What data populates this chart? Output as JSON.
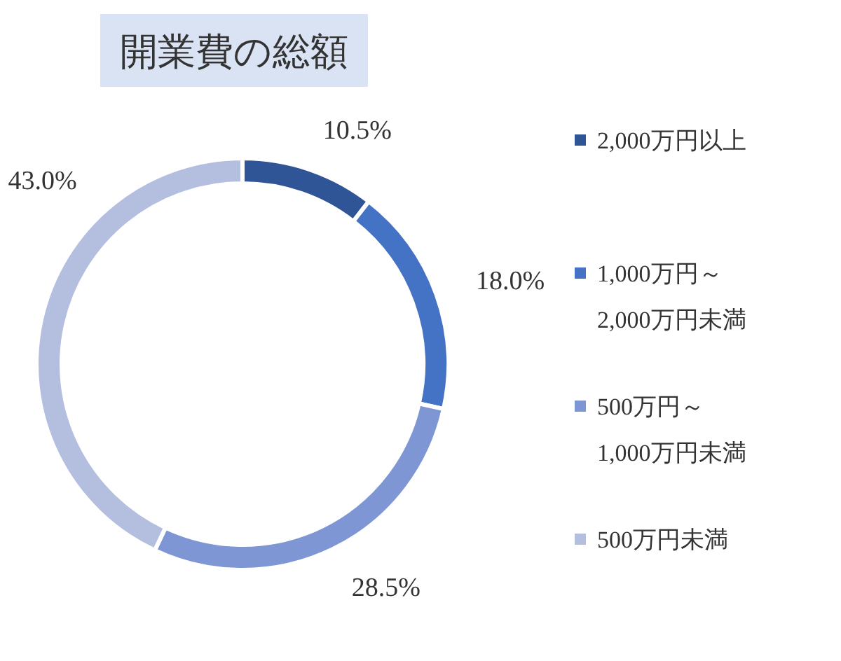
{
  "chart_data": {
    "type": "donut",
    "title": "開業費の総額",
    "categories": [
      "2,000万円以上",
      "1,000万円～2,000万円未満",
      "500万円～1,000万円未満",
      "500万円未満"
    ],
    "values": [
      10.5,
      18.0,
      28.5,
      43.0
    ],
    "colors": [
      "#2f5597",
      "#4472c4",
      "#7f96d4",
      "#b4bfe0"
    ],
    "value_labels": [
      "10.5%",
      "18.0%",
      "28.5%",
      "43.0%"
    ],
    "legend": "right"
  }
}
